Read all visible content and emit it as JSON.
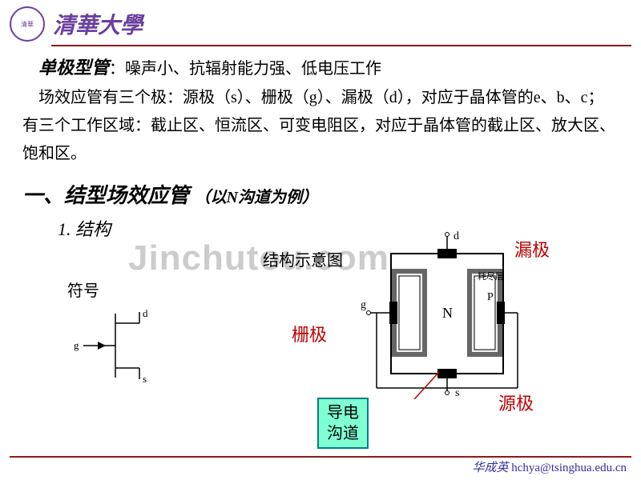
{
  "header": {
    "logo_text": "清華",
    "university": "清華大學"
  },
  "body": {
    "term": "单极型管",
    "colon": "：",
    "desc1": "噪声小、抗辐射能力强、低电压工作",
    "desc2": "场效应管有三个极：源极（s）、栅极（g）、漏极（d），对应于晶体管的e、b、c；有三个工作区域：截止区、恒流区、可变电阻区，对应于晶体管的截止区、放大区、饱和区。"
  },
  "section": {
    "title": "一、结型场效应管",
    "note": "（以N沟道为例）",
    "sub": "1. 结构",
    "struct_title": "结构示意图",
    "symbol_label": "符号"
  },
  "diagram_labels": {
    "drain": "漏极",
    "gate": "栅极",
    "source": "源极",
    "deplete": "耗尽层",
    "channel": "导电\n沟道",
    "d": "d",
    "g": "g",
    "s": "s",
    "N": "N",
    "P": "P"
  },
  "watermark": "Jinchutou.com",
  "footer": {
    "name": "华成英",
    "email": "hchya@tsinghua.edu.cn"
  },
  "colors": {
    "purple": "#6b3fa0",
    "darkred": "#8b1a1a",
    "red": "#c00000",
    "teal_border": "#008080",
    "teal_fill": "#7fffd4",
    "blue": "#3030a0"
  }
}
